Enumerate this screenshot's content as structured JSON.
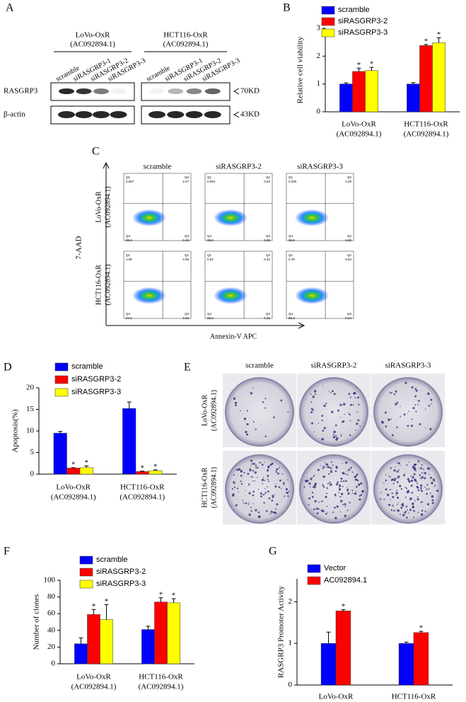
{
  "chart_data": [
    {
      "type": "bar",
      "label": "B",
      "ylabel": "Relative cell viability",
      "categories": [
        [
          "LoVo-OxR",
          "(AC092894.1)"
        ],
        [
          "HCT116-OxR",
          "(AC092894.1)"
        ]
      ],
      "series": [
        {
          "name": "scramble",
          "color": "#0000ff",
          "values": [
            1.0,
            1.0
          ],
          "errors": [
            0.04,
            0.05
          ],
          "labels": [
            null,
            null
          ]
        },
        {
          "name": "siRASGRP3-2",
          "color": "#ff0000",
          "values": [
            1.45,
            2.38
          ],
          "errors": [
            0.12,
            0.04
          ],
          "labels": [
            "*",
            "*"
          ]
        },
        {
          "name": "siRASGRP3-3",
          "color": "#ffff00",
          "values": [
            1.48,
            2.48
          ],
          "errors": [
            0.12,
            0.18
          ],
          "labels": [
            "*",
            "*"
          ]
        }
      ],
      "ylim": [
        0,
        3
      ],
      "yticks": [
        0,
        1,
        2,
        3
      ]
    },
    {
      "type": "bar",
      "label": "D",
      "ylabel": "Apoptosis(%)",
      "categories": [
        [
          "LoVo-OxR",
          "(AC092894.1)"
        ],
        [
          "HCT116-OxR",
          "(AC092894.1)"
        ]
      ],
      "series": [
        {
          "name": "scramble",
          "color": "#0000ff",
          "values": [
            9.5,
            15.2
          ],
          "errors": [
            0.4,
            1.5
          ],
          "labels": [
            null,
            null
          ]
        },
        {
          "name": "siRASGRP3-2",
          "color": "#ff0000",
          "values": [
            1.4,
            0.6
          ],
          "errors": [
            0.1,
            0.1
          ],
          "labels": [
            "*",
            "*"
          ]
        },
        {
          "name": "siRASGRP3-3",
          "color": "#ffff00",
          "values": [
            1.5,
            0.8
          ],
          "errors": [
            0.4,
            0.2
          ],
          "labels": [
            "*",
            "*"
          ]
        }
      ],
      "ylim": [
        0,
        20
      ],
      "yticks": [
        0,
        5,
        10,
        15,
        20
      ]
    },
    {
      "type": "bar",
      "label": "F",
      "ylabel": "Number of clones",
      "categories": [
        [
          "LoVo-OxR",
          "(AC092894.1)"
        ],
        [
          "HCT116-OxR",
          "(AC092894.1)"
        ]
      ],
      "series": [
        {
          "name": "scramble",
          "color": "#0000ff",
          "values": [
            24,
            41
          ],
          "errors": [
            7,
            4
          ],
          "labels": [
            null,
            null
          ]
        },
        {
          "name": "siRASGRP3-2",
          "color": "#ff0000",
          "values": [
            59,
            74
          ],
          "errors": [
            6,
            5
          ],
          "labels": [
            "*",
            "*"
          ]
        },
        {
          "name": "siRASGRP3-3",
          "color": "#ffff00",
          "values": [
            53,
            73
          ],
          "errors": [
            18,
            5
          ],
          "labels": [
            "*",
            "*"
          ]
        }
      ],
      "ylim": [
        0,
        100
      ],
      "yticks": [
        0,
        20,
        40,
        60,
        80,
        100
      ]
    },
    {
      "type": "bar",
      "label": "G",
      "ylabel": "RASGRP3 Promoter Activity",
      "categories": [
        [
          "LoVo-OxR"
        ],
        [
          "HCT116-OxR"
        ]
      ],
      "series": [
        {
          "name": "Vector",
          "color": "#0000ff",
          "values": [
            1.0,
            1.0
          ],
          "errors": [
            0.27,
            0.03
          ],
          "labels": [
            null,
            null
          ]
        },
        {
          "name": "AC092894.1",
          "color": "#ff0000",
          "values": [
            1.78,
            1.26
          ],
          "errors": [
            0.03,
            0.03
          ],
          "labels": [
            "*",
            "*"
          ]
        }
      ],
      "ylim": [
        0,
        2.55
      ],
      "yticks": [
        0,
        1,
        2
      ]
    }
  ],
  "western_blot": {
    "label": "A",
    "groups": [
      {
        "name": "LoVo-OxR",
        "id": "(AC092894.1)"
      },
      {
        "name": "HCT116-OxR",
        "id": "(AC092894.1)"
      }
    ],
    "lanes": [
      "scramble",
      "siRASGRP3-1",
      "siRASGRP3-2",
      "siRASGRP3-3"
    ],
    "rows": [
      {
        "name": "RASGRP3",
        "size": "70KD"
      },
      {
        "name": "β-actin",
        "size": "43KD"
      }
    ]
  },
  "flow_cytometry": {
    "label": "C",
    "y_axis": "7-AAD",
    "x_axis": "Annexin-V APC",
    "columns": [
      "scramble",
      "siRASGRP3-2",
      "siRASGRP3-3"
    ],
    "rows": [
      [
        "LoVo-OxR",
        "(AC092894.1)"
      ],
      [
        "HCT116-OxR",
        "(AC092894.1)"
      ]
    ],
    "quadrant_names": [
      "Q1",
      "Q2",
      "Q4",
      "Q3"
    ],
    "plots": [
      [
        [
          "0.657",
          "2.07",
          "96.8",
          "0.48"
        ],
        [
          "0.064",
          "0.63",
          "98.5",
          "0.89"
        ],
        [
          "0.020",
          "0.28",
          "98.9",
          "0.80"
        ]
      ],
      [
        [
          "1.95",
          "4.55",
          "94.6",
          "3.03"
        ],
        [
          "0.64",
          "0.42",
          "98.6",
          "0.31"
        ],
        [
          "0.78",
          "0.53",
          "98.3",
          "0.24"
        ]
      ]
    ]
  },
  "colony_formation": {
    "label": "E",
    "columns": [
      "scramble",
      "siRASGRP3-2",
      "siRASGRP3-3"
    ],
    "rows": [
      [
        "LoVo-OxR",
        "(AC092894.1)"
      ],
      [
        "HCT116-OxR",
        "(AC092894.1)"
      ]
    ]
  }
}
